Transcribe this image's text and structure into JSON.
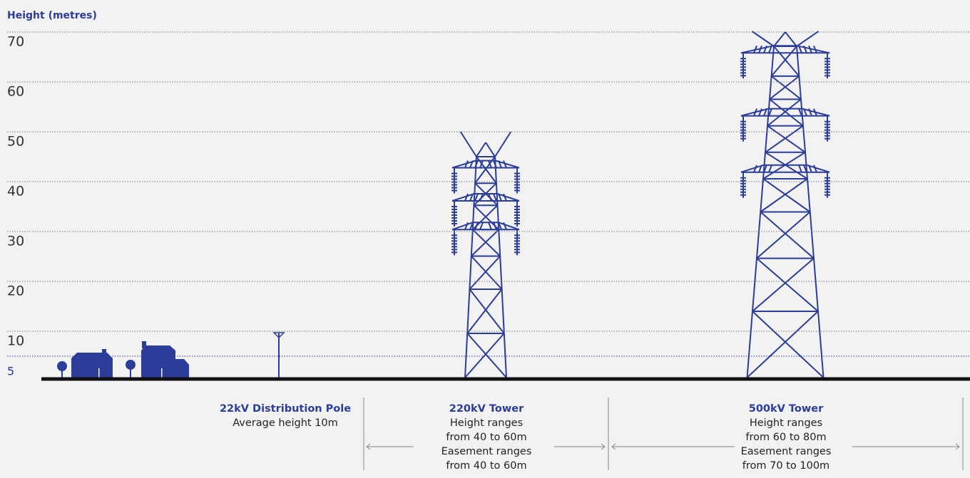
{
  "axis_label": "Height (metres)",
  "ticks": [
    70,
    60,
    50,
    40,
    30,
    20,
    10,
    5
  ],
  "structures": [
    {
      "name": "22kV Distribution Pole",
      "lines": [
        "Average height 10m"
      ]
    },
    {
      "name": "220kV Tower",
      "lines": [
        "Height ranges",
        "from 40 to 60m",
        "Easement ranges",
        "from 40 to 60m"
      ]
    },
    {
      "name": "500kV Tower",
      "lines": [
        "Height ranges",
        "from 60 to 80m",
        "Easement ranges",
        "from 70 to 100m"
      ]
    }
  ]
}
